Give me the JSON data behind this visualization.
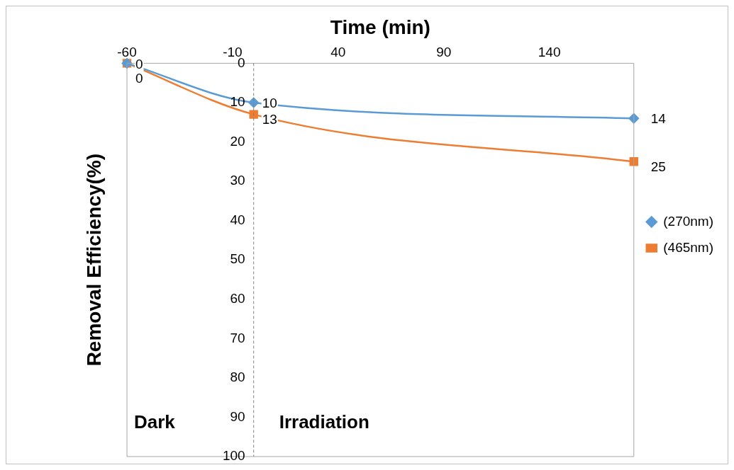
{
  "chart_data": {
    "type": "line",
    "xlabel": "Time (min)",
    "ylabel": "Removal Efficiency(%)",
    "x": [
      -60,
      0,
      180
    ],
    "series": [
      {
        "name": "(270nm)",
        "color": "#5b9bd5",
        "values": [
          0,
          10,
          14
        ],
        "marker": "diamond"
      },
      {
        "name": "(465nm)",
        "color": "#ed7d31",
        "values": [
          0,
          13,
          25
        ],
        "marker": "square"
      }
    ],
    "xlim": [
      -60,
      180
    ],
    "xticks": [
      -60,
      -10,
      40,
      90,
      140
    ],
    "ylim": [
      100,
      0
    ],
    "yticks": [
      0,
      10,
      20,
      30,
      40,
      50,
      60,
      70,
      80,
      90,
      100
    ],
    "ref_lines": [
      {
        "axis": "x",
        "value": 0,
        "color": "#808080",
        "line_style": "dashed"
      }
    ],
    "annotations": [
      "Dark",
      "Irradiation"
    ],
    "data_labels": true,
    "legend": "right",
    "grid": false
  }
}
